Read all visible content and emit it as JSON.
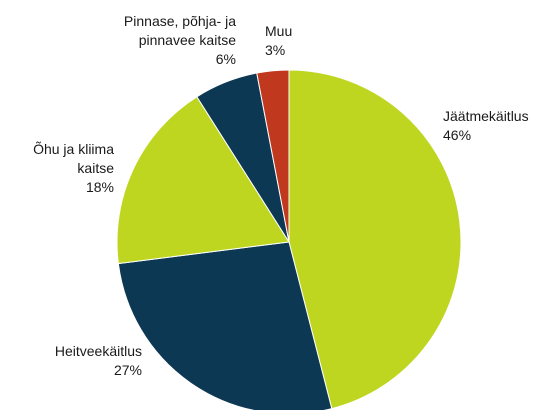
{
  "chart_data": {
    "type": "pie",
    "categories": [
      "Jäätmekäitlus",
      "Heitveekäitlus",
      "Õhu ja kliima kaitse",
      "Pinnase, põhja- ja pinnavee kaitse",
      "Muu"
    ],
    "values": [
      46,
      27,
      18,
      6,
      3
    ],
    "value_labels": [
      "46%",
      "27%",
      "18%",
      "6%",
      "3%"
    ],
    "colors": [
      "#bfd621",
      "#0d3853",
      "#bfd621",
      "#0d3853",
      "#c0391f"
    ]
  }
}
